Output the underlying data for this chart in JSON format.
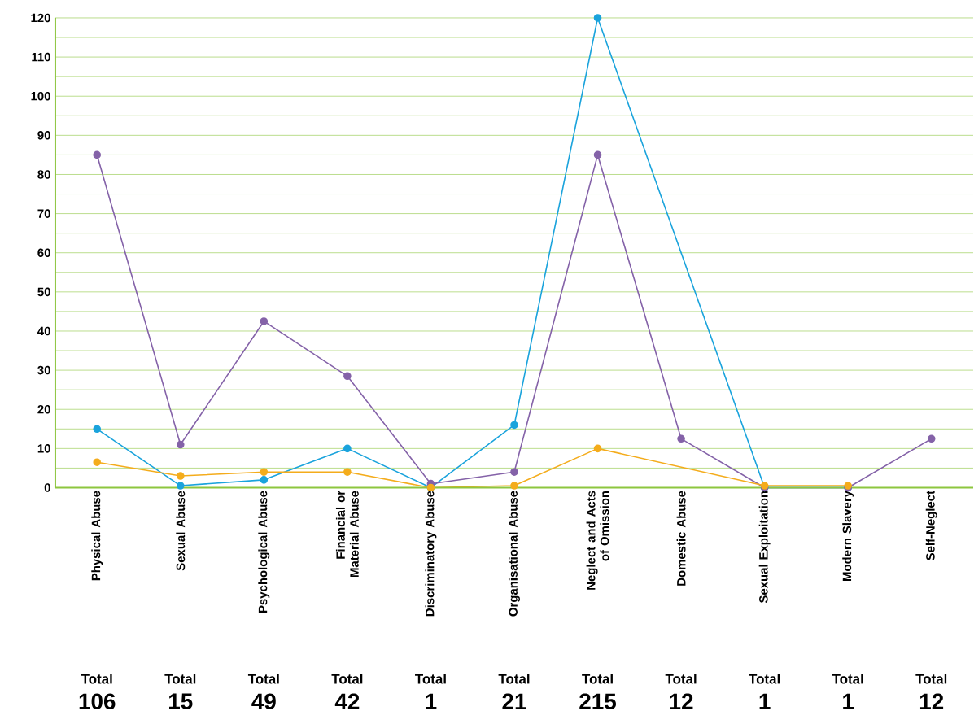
{
  "chart_data": {
    "type": "line",
    "categories": [
      "Physical Abuse",
      "Sexual Abuse",
      "Psychological Abuse",
      "Financial or Material Abuse",
      "Discriminatory Abuse",
      "Organisational Abuse",
      "Neglect and Acts of Omission",
      "Domestic Abuse",
      "Sexual Exploitation",
      "Modern Slavery",
      "Self-Neglect"
    ],
    "series": [
      {
        "color": "#1aa3dc",
        "values": [
          15,
          0.5,
          2,
          10,
          0,
          16,
          120,
          null,
          0,
          0,
          null
        ]
      },
      {
        "color": "#8462a8",
        "values": [
          85,
          11,
          42.5,
          28.5,
          1,
          4,
          85,
          12.5,
          0,
          0,
          12.5
        ]
      },
      {
        "color": "#f4ac1c",
        "values": [
          6.5,
          3,
          4,
          4,
          0,
          0.5,
          10,
          null,
          0.5,
          0.5,
          null
        ]
      }
    ],
    "totals": [
      "106",
      "15",
      "49",
      "42",
      "1",
      "21",
      "215",
      "12",
      "1",
      "1",
      "12"
    ],
    "annotations": [
      "Total",
      "Total",
      "Total",
      "Total",
      "Total",
      "Total",
      "Total",
      "Total",
      "Total",
      "Total",
      "Total"
    ],
    "ylim": [
      0,
      120
    ],
    "yticks": [
      0,
      {
        "value": 5,
        "label": null
      },
      10,
      {
        "value": 15,
        "label": null
      },
      20,
      {
        "value": 25,
        "label": null
      },
      30,
      {
        "value": 35,
        "label": null
      },
      40,
      {
        "value": 45,
        "label": null
      },
      50,
      {
        "value": 55,
        "label": null
      },
      60,
      {
        "value": 65,
        "label": null
      },
      70,
      {
        "value": 75,
        "label": null
      },
      80,
      {
        "value": 85,
        "label": null
      },
      90,
      {
        "value": 95,
        "label": null
      },
      100,
      {
        "value": 105,
        "label": null
      },
      110,
      {
        "value": 115,
        "label": null
      },
      120
    ],
    "grid": "y",
    "marker": "circle",
    "line_style": "solid"
  }
}
